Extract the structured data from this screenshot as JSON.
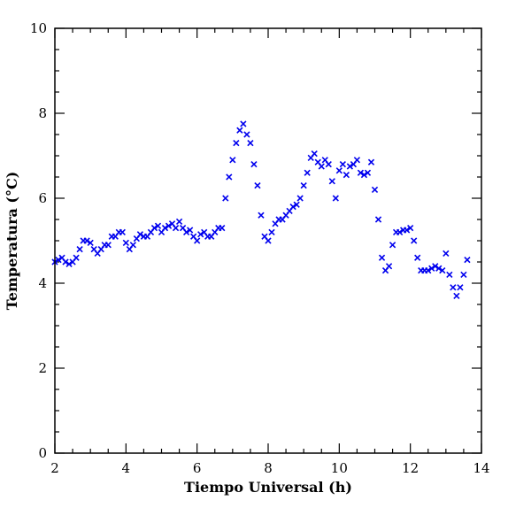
{
  "chart_data": {
    "type": "scatter",
    "title": "",
    "xlabel": "Tiempo Universal (h)",
    "ylabel": "Temperatura (°C)",
    "xlim": [
      2,
      14
    ],
    "ylim": [
      0,
      10
    ],
    "x_major_ticks": [
      2,
      4,
      6,
      8,
      10,
      12,
      14
    ],
    "y_major_ticks": [
      0,
      2,
      4,
      6,
      8,
      10
    ],
    "x_tick_labels": [
      "2",
      "4",
      "6",
      "8",
      "10",
      "12",
      "14"
    ],
    "y_tick_labels": [
      "0",
      "2",
      "4",
      "6",
      "8",
      "10"
    ],
    "grid": false,
    "marker": "x",
    "color": "#0000ee",
    "x": [
      2.0,
      2.1,
      2.2,
      2.3,
      2.4,
      2.5,
      2.6,
      2.7,
      2.8,
      2.9,
      3.0,
      3.1,
      3.2,
      3.3,
      3.4,
      3.5,
      3.6,
      3.7,
      3.8,
      3.9,
      4.0,
      4.1,
      4.2,
      4.3,
      4.4,
      4.5,
      4.6,
      4.7,
      4.8,
      4.9,
      5.0,
      5.1,
      5.2,
      5.3,
      5.4,
      5.5,
      5.6,
      5.7,
      5.8,
      5.9,
      6.0,
      6.1,
      6.2,
      6.3,
      6.4,
      6.5,
      6.6,
      6.7,
      6.8,
      6.9,
      7.0,
      7.1,
      7.2,
      7.3,
      7.4,
      7.5,
      7.6,
      7.7,
      7.8,
      7.9,
      8.0,
      8.1,
      8.2,
      8.3,
      8.4,
      8.5,
      8.6,
      8.7,
      8.8,
      8.9,
      9.0,
      9.1,
      9.2,
      9.3,
      9.4,
      9.5,
      9.6,
      9.7,
      9.8,
      9.9,
      10.0,
      10.1,
      10.2,
      10.3,
      10.4,
      10.5,
      10.6,
      10.7,
      10.8,
      10.9,
      11.0,
      11.1,
      11.2,
      11.3,
      11.4,
      11.5,
      11.6,
      11.7,
      11.8,
      11.9,
      12.0,
      12.1,
      12.2,
      12.3,
      12.4,
      12.5,
      12.6,
      12.7,
      12.8,
      12.9,
      13.0,
      13.1,
      13.2,
      13.3,
      13.4,
      13.5,
      13.6
    ],
    "y": [
      4.5,
      4.55,
      4.6,
      4.5,
      4.45,
      4.5,
      4.6,
      4.8,
      5.0,
      5.0,
      4.95,
      4.8,
      4.7,
      4.8,
      4.9,
      4.9,
      5.1,
      5.1,
      5.2,
      5.2,
      4.95,
      4.8,
      4.9,
      5.05,
      5.15,
      5.1,
      5.1,
      5.2,
      5.3,
      5.35,
      5.2,
      5.3,
      5.35,
      5.4,
      5.3,
      5.45,
      5.3,
      5.2,
      5.25,
      5.1,
      5.0,
      5.15,
      5.2,
      5.1,
      5.1,
      5.2,
      5.3,
      5.3,
      6.0,
      6.5,
      6.9,
      7.3,
      7.6,
      7.75,
      7.5,
      7.3,
      6.8,
      6.3,
      5.6,
      5.1,
      5.0,
      5.2,
      5.4,
      5.5,
      5.5,
      5.6,
      5.7,
      5.8,
      5.85,
      6.0,
      6.3,
      6.6,
      6.95,
      7.05,
      6.85,
      6.75,
      6.9,
      6.8,
      6.4,
      6.0,
      6.65,
      6.8,
      6.55,
      6.75,
      6.8,
      6.9,
      6.6,
      6.55,
      6.6,
      6.85,
      6.2,
      5.5,
      4.6,
      4.3,
      4.4,
      4.9,
      5.2,
      5.2,
      5.25,
      5.25,
      5.3,
      5.0,
      4.6,
      4.3,
      4.3,
      4.3,
      4.35,
      4.4,
      4.35,
      4.3,
      4.7,
      4.2,
      3.9,
      3.7,
      3.9,
      4.2,
      4.55
    ]
  }
}
